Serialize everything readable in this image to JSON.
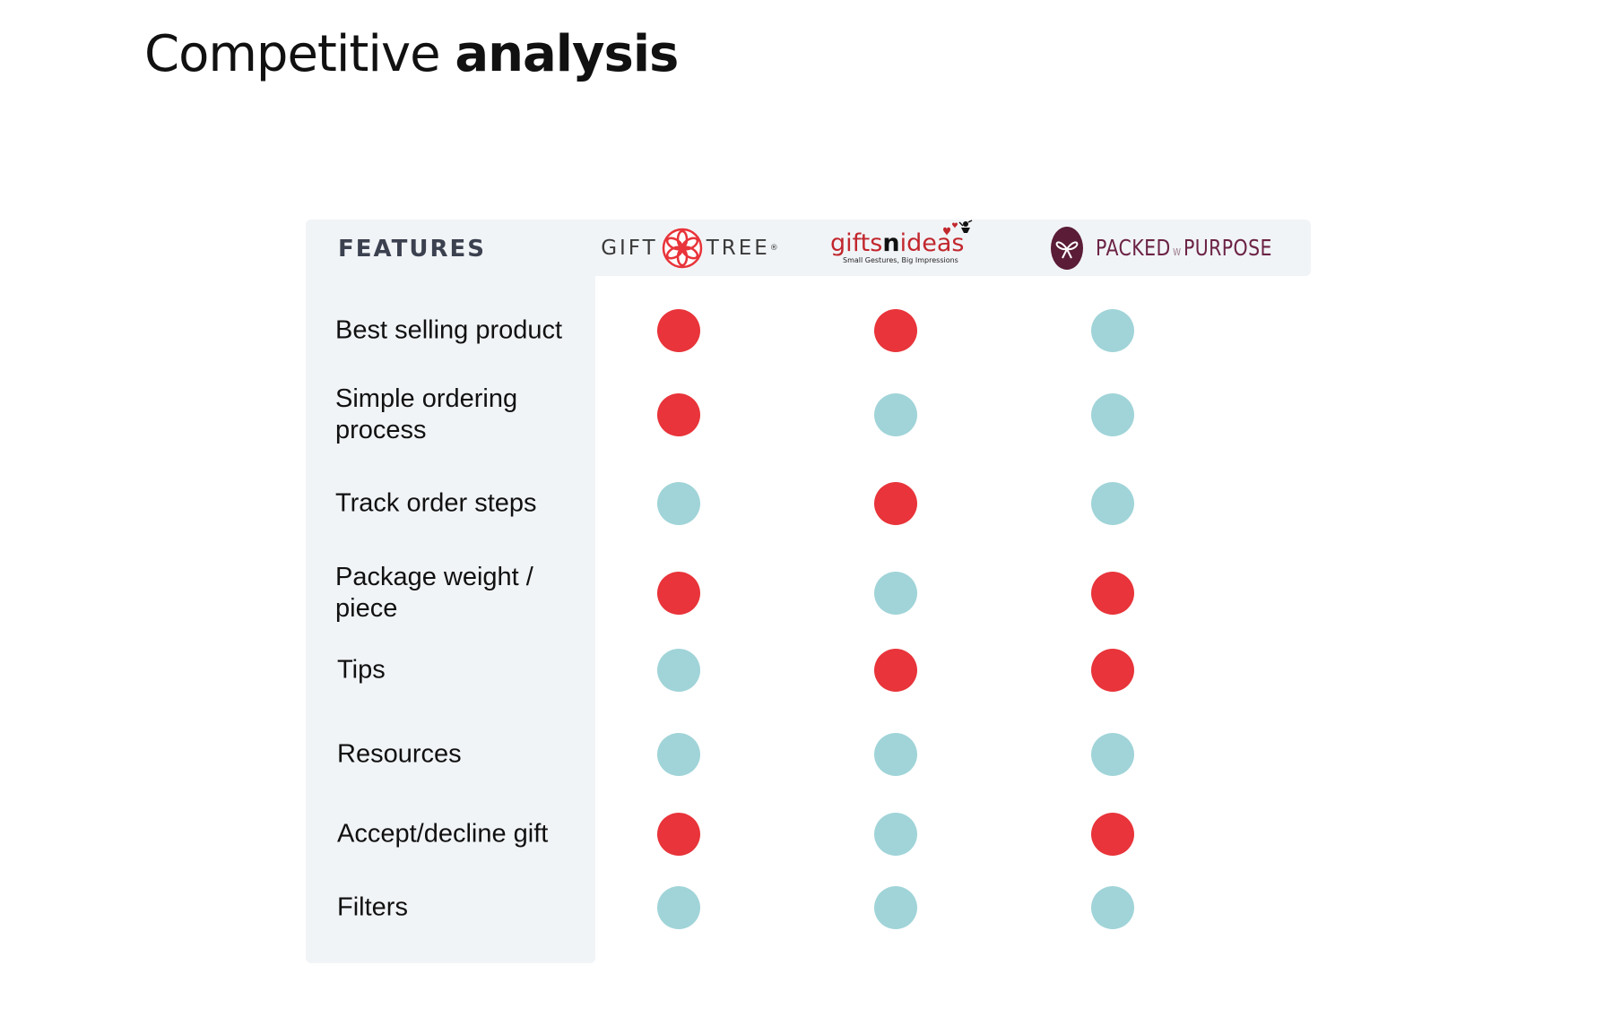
{
  "title": {
    "part1": "Competitive",
    "part2": "analysis"
  },
  "colors": {
    "has": "#e8343a",
    "has_not": "#a0d4d8",
    "panel": "#f1f4f7"
  },
  "table": {
    "features_header": "FEATURES",
    "competitors": [
      {
        "name": "GIFT TREE",
        "logo_text_left": "GIFT",
        "logo_text_right": "TREE",
        "registered": "®",
        "icon": "flower-icon"
      },
      {
        "name": "giftsnideas",
        "logo_text_a": "gifts",
        "logo_text_n": "n",
        "logo_text_b": "ideas",
        "tagline": "Small Gestures, Big Impressions",
        "icon": "cupid-icon"
      },
      {
        "name": "PACKED W/ PURPOSE",
        "logo_text_left": "PACKED",
        "logo_text_w": "W",
        "logo_text_right": "PURPOSE",
        "icon": "ribbon-icon"
      }
    ],
    "rows": [
      {
        "feature": "Best selling product",
        "values": [
          "has",
          "has",
          "has_not"
        ]
      },
      {
        "feature": "Simple ordering process",
        "values": [
          "has",
          "has_not",
          "has_not"
        ]
      },
      {
        "feature": "Track order steps",
        "values": [
          "has_not",
          "has",
          "has_not"
        ]
      },
      {
        "feature": "Package weight / piece",
        "values": [
          "has",
          "has_not",
          "has"
        ]
      },
      {
        "feature": "Tips",
        "values": [
          "has_not",
          "has",
          "has"
        ]
      },
      {
        "feature": "Resources",
        "values": [
          "has_not",
          "has_not",
          "has_not"
        ]
      },
      {
        "feature": "Accept/decline gift",
        "values": [
          "has",
          "has_not",
          "has"
        ]
      },
      {
        "feature": "Filters",
        "values": [
          "has_not",
          "has_not",
          "has_not"
        ]
      }
    ]
  }
}
